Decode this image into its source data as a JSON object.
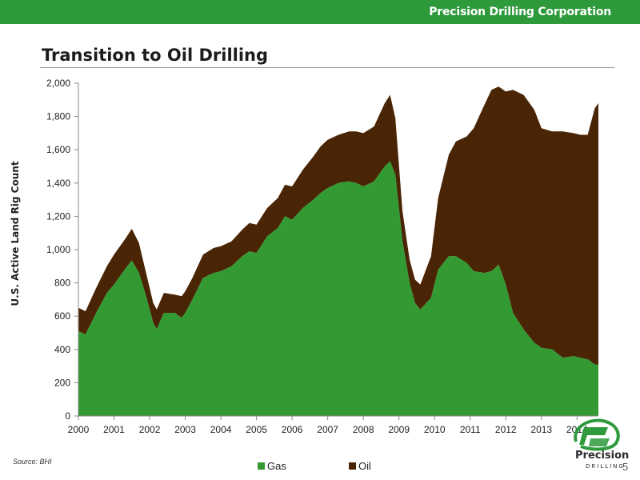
{
  "header": {
    "brand": "Precision Drilling Corporation"
  },
  "slide": {
    "title": "Transition to Oil Drilling",
    "source": "Source: BHI",
    "page_number": "5"
  },
  "logo": {
    "name": "Precision",
    "sub": "DRILLING"
  },
  "colors": {
    "header_green": "#2e9a3c",
    "gas": "#339933",
    "oil": "#4a2505"
  },
  "chart_data": {
    "type": "area",
    "stacked": true,
    "ylabel": "U.S. Active Land Rig Count",
    "xlabel": "",
    "ylim": [
      0,
      2000
    ],
    "yticks": [
      "0",
      "200",
      "400",
      "600",
      "800",
      "1,000",
      "1,200",
      "1,400",
      "1,600",
      "1,800",
      "2,000"
    ],
    "xlim": [
      2000,
      2014.6
    ],
    "xticks": [
      "2000",
      "2001",
      "2002",
      "2003",
      "2004",
      "2005",
      "2006",
      "2007",
      "2008",
      "2009",
      "2010",
      "2011",
      "2012",
      "2013",
      "2014"
    ],
    "grid": false,
    "legend": "bottom",
    "x": [
      2000.0,
      2000.2,
      2000.5,
      2000.8,
      2001.0,
      2001.3,
      2001.5,
      2001.7,
      2001.9,
      2002.1,
      2002.2,
      2002.4,
      2002.7,
      2002.9,
      2003.0,
      2003.2,
      2003.5,
      2003.8,
      2004.0,
      2004.3,
      2004.6,
      2004.8,
      2005.0,
      2005.3,
      2005.6,
      2005.8,
      2006.0,
      2006.3,
      2006.6,
      2006.8,
      2007.0,
      2007.3,
      2007.6,
      2007.8,
      2008.0,
      2008.3,
      2008.6,
      2008.75,
      2008.9,
      2009.1,
      2009.3,
      2009.45,
      2009.6,
      2009.9,
      2010.1,
      2010.4,
      2010.6,
      2010.9,
      2011.1,
      2011.4,
      2011.6,
      2011.8,
      2012.0,
      2012.2,
      2012.5,
      2012.8,
      2013.0,
      2013.3,
      2013.6,
      2013.9,
      2014.1,
      2014.3,
      2014.5,
      2014.6
    ],
    "series": [
      {
        "name": "Gas",
        "values": [
          510,
          490,
          620,
          740,
          790,
          880,
          935,
          860,
          720,
          560,
          520,
          620,
          620,
          590,
          620,
          700,
          830,
          860,
          870,
          900,
          960,
          990,
          980,
          1080,
          1130,
          1200,
          1180,
          1250,
          1300,
          1340,
          1370,
          1400,
          1410,
          1400,
          1380,
          1410,
          1500,
          1530,
          1450,
          1050,
          800,
          680,
          640,
          710,
          880,
          960,
          960,
          920,
          870,
          860,
          870,
          910,
          790,
          620,
          520,
          440,
          410,
          400,
          350,
          360,
          350,
          340,
          310,
          310
        ]
      },
      {
        "name": "Oil",
        "values": [
          140,
          140,
          150,
          160,
          180,
          180,
          190,
          180,
          140,
          120,
          120,
          120,
          110,
          130,
          130,
          130,
          140,
          150,
          150,
          150,
          160,
          170,
          170,
          170,
          180,
          190,
          200,
          230,
          260,
          280,
          290,
          290,
          300,
          310,
          320,
          330,
          380,
          400,
          340,
          180,
          140,
          140,
          150,
          250,
          430,
          610,
          690,
          760,
          860,
          1010,
          1090,
          1070,
          1160,
          1340,
          1410,
          1400,
          1320,
          1310,
          1360,
          1340,
          1340,
          1350,
          1540,
          1570
        ]
      }
    ]
  }
}
